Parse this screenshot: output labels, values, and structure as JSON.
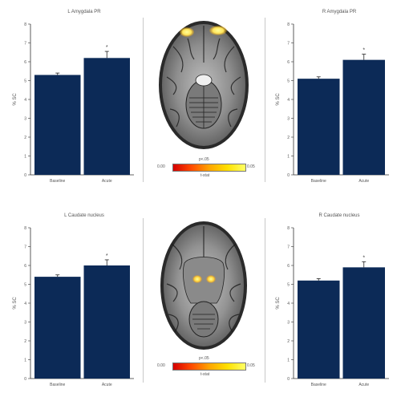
{
  "figure": {
    "colors": {
      "bar": "#0c2a57",
      "axis": "#333333",
      "error": "#222222"
    },
    "brain_top": {
      "stat_label": "p<.05",
      "cb_min": "0.00",
      "cb_max": "0.05",
      "caption": "t-stat",
      "blob_color": "#ffe45a"
    },
    "brain_bottom": {
      "stat_label": "p<.05",
      "cb_min": "0.00",
      "cb_max": "0.05",
      "caption": "t-stat",
      "blob_color": "#ffd23c"
    }
  },
  "chart_data": [
    {
      "type": "bar",
      "title": "L Amygdala PR",
      "categories": [
        "Baseline",
        "Acute"
      ],
      "values": [
        5.3,
        6.2
      ],
      "errors": [
        0.1,
        0.35
      ],
      "ylabel": "% SC",
      "ylim": [
        0,
        8
      ],
      "yticks": [
        0,
        1,
        2,
        3,
        4,
        5,
        6,
        7,
        8
      ],
      "significance": [
        "",
        "*"
      ]
    },
    {
      "type": "bar",
      "title": "R Amygdala PR",
      "categories": [
        "Baseline",
        "Acute"
      ],
      "values": [
        5.1,
        6.1
      ],
      "errors": [
        0.1,
        0.3
      ],
      "ylabel": "% SC",
      "ylim": [
        0,
        8
      ],
      "yticks": [
        0,
        1,
        2,
        3,
        4,
        5,
        6,
        7,
        8
      ],
      "significance": [
        "",
        "*"
      ]
    },
    {
      "type": "bar",
      "title": "L Caudate nucleus",
      "categories": [
        "Baseline",
        "Acute"
      ],
      "values": [
        5.4,
        6.0
      ],
      "errors": [
        0.1,
        0.3
      ],
      "ylabel": "% SC",
      "ylim": [
        0,
        8
      ],
      "yticks": [
        0,
        1,
        2,
        3,
        4,
        5,
        6,
        7,
        8
      ],
      "significance": [
        "",
        "*"
      ]
    },
    {
      "type": "bar",
      "title": "R Caudate nucleus",
      "categories": [
        "Baseline",
        "Acute"
      ],
      "values": [
        5.2,
        5.9
      ],
      "errors": [
        0.1,
        0.3
      ],
      "ylabel": "% SC",
      "ylim": [
        0,
        8
      ],
      "yticks": [
        0,
        1,
        2,
        3,
        4,
        5,
        6,
        7,
        8
      ],
      "significance": [
        "",
        "*"
      ]
    }
  ]
}
